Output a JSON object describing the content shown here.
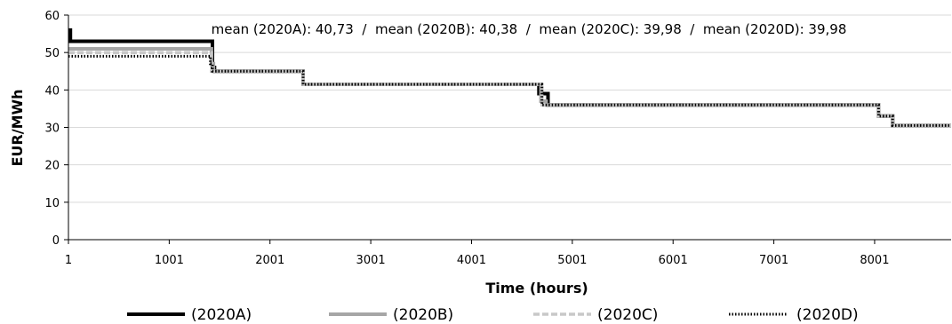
{
  "chart_data": {
    "type": "line",
    "title": "",
    "xlabel": "Time (hours)",
    "ylabel": "EUR/MWh",
    "xlim": [
      1,
      8760
    ],
    "ylim": [
      0,
      60
    ],
    "x_ticks": [
      1,
      1001,
      2001,
      3001,
      4001,
      5001,
      6001,
      7001,
      8001
    ],
    "y_ticks": [
      0,
      10,
      20,
      30,
      40,
      50,
      60
    ],
    "grid": true,
    "legend_position": "bottom",
    "annotation": "mean (2020A): 40,73  /  mean (2020B): 40,38  /  mean (2020C): 39,98  /  mean (2020D): 39,98",
    "series": [
      {
        "name": "(2020A)",
        "color": "#000000",
        "style": "solid-thick",
        "x": [
          1,
          20,
          20,
          1430,
          1430,
          1450,
          1450,
          2330,
          2330,
          4670,
          4670,
          4760,
          4760,
          8040,
          8040,
          8180,
          8180,
          8760
        ],
        "y": [
          56,
          56,
          53,
          53,
          46,
          46,
          45,
          45,
          41.5,
          41.5,
          39,
          39,
          36,
          36,
          33,
          33,
          30.5,
          30.5
        ]
      },
      {
        "name": "(2020B)",
        "color": "#a6a6a6",
        "style": "solid",
        "x": [
          1,
          1420,
          1420,
          1440,
          1440,
          2330,
          2330,
          4690,
          4690,
          4740,
          4740,
          8040,
          8040,
          8180,
          8180,
          8760
        ],
        "y": [
          51,
          51,
          47,
          47,
          45,
          45,
          41.5,
          41.5,
          37,
          37,
          36,
          36,
          33,
          33,
          30.5,
          30.5
        ]
      },
      {
        "name": "(2020C)",
        "color": "#c8c8c8",
        "style": "dashed",
        "x": [
          1,
          1420,
          1420,
          2330,
          2330,
          4700,
          4700,
          8040,
          8040,
          8180,
          8180,
          8760
        ],
        "y": [
          50,
          50,
          45,
          45,
          41.5,
          41.5,
          36,
          36,
          33,
          33,
          30.5,
          30.5
        ]
      },
      {
        "name": "(2020D)",
        "color": "#000000",
        "style": "dotted",
        "x": [
          1,
          1410,
          1410,
          1430,
          1430,
          2330,
          2330,
          4700,
          4700,
          8040,
          8040,
          8180,
          8180,
          8760
        ],
        "y": [
          49,
          49,
          47,
          47,
          45,
          45,
          41.5,
          41.5,
          36,
          36,
          33,
          33,
          30.5,
          30.5
        ]
      }
    ]
  }
}
